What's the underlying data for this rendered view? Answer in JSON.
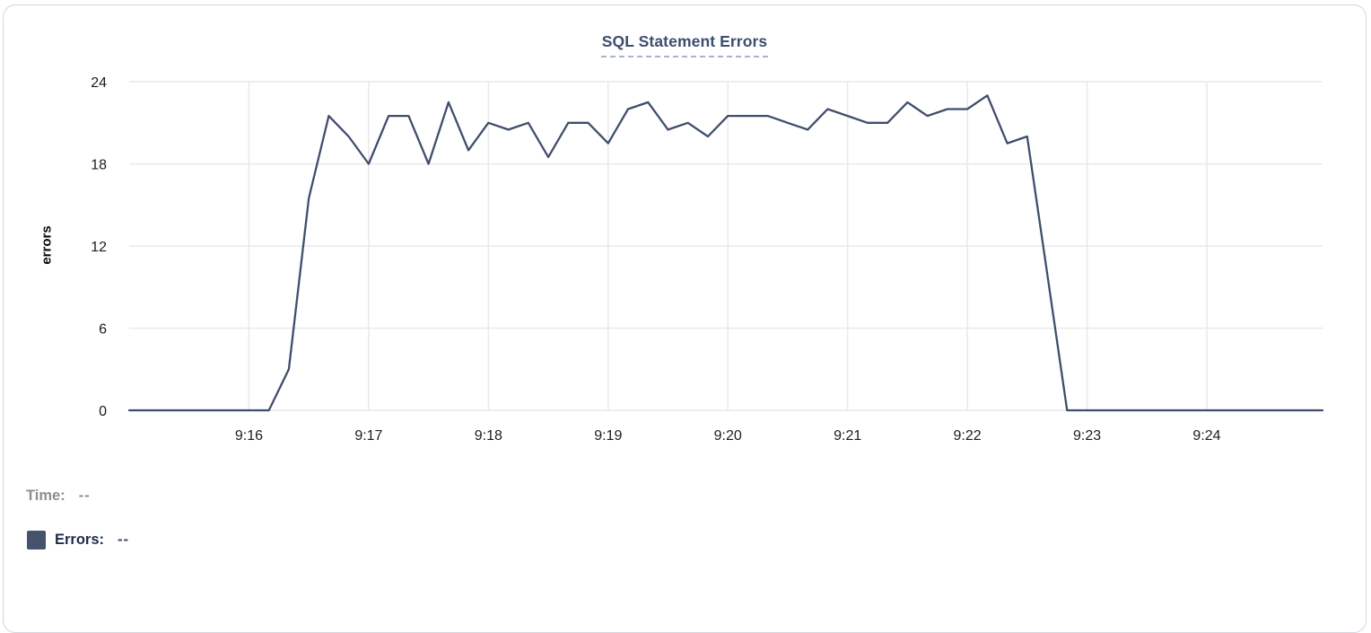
{
  "chart_data": {
    "type": "line",
    "title": "SQL Statement Errors",
    "ylabel": "errors",
    "xlabel": "",
    "ylim": [
      0,
      24
    ],
    "yticks": [
      0,
      6,
      12,
      18,
      24
    ],
    "xtick_labels": [
      "9:16",
      "9:17",
      "9:18",
      "9:19",
      "9:20",
      "9:21",
      "9:22",
      "9:23",
      "9:24"
    ],
    "xtick_seconds": [
      60,
      120,
      180,
      240,
      300,
      360,
      420,
      480,
      540
    ],
    "x_start_time": "9:15:00",
    "x_domain_seconds": [
      0,
      598
    ],
    "grid": true,
    "legend_position": "bottom-left",
    "series": [
      {
        "name": "Errors",
        "color": "#3f4e6c",
        "points": [
          [
            0,
            0
          ],
          [
            10,
            0
          ],
          [
            20,
            0
          ],
          [
            30,
            0
          ],
          [
            40,
            0
          ],
          [
            50,
            0
          ],
          [
            60,
            0
          ],
          [
            70,
            0
          ],
          [
            80,
            3
          ],
          [
            90,
            15.5
          ],
          [
            100,
            21.5
          ],
          [
            110,
            20
          ],
          [
            120,
            18
          ],
          [
            130,
            21.5
          ],
          [
            140,
            21.5
          ],
          [
            150,
            18
          ],
          [
            160,
            22.5
          ],
          [
            170,
            19
          ],
          [
            180,
            21
          ],
          [
            190,
            20.5
          ],
          [
            200,
            21
          ],
          [
            210,
            18.5
          ],
          [
            220,
            21
          ],
          [
            230,
            21
          ],
          [
            240,
            19.5
          ],
          [
            250,
            22
          ],
          [
            260,
            22.5
          ],
          [
            270,
            20.5
          ],
          [
            280,
            21
          ],
          [
            290,
            20
          ],
          [
            300,
            21.5
          ],
          [
            310,
            21.5
          ],
          [
            320,
            21.5
          ],
          [
            330,
            21
          ],
          [
            340,
            20.5
          ],
          [
            350,
            22
          ],
          [
            360,
            21.5
          ],
          [
            370,
            21
          ],
          [
            380,
            21
          ],
          [
            390,
            22.5
          ],
          [
            400,
            21.5
          ],
          [
            410,
            22
          ],
          [
            420,
            22
          ],
          [
            430,
            23
          ],
          [
            440,
            19.5
          ],
          [
            450,
            20
          ],
          [
            460,
            10
          ],
          [
            470,
            0
          ],
          [
            480,
            0
          ],
          [
            490,
            0
          ],
          [
            500,
            0
          ],
          [
            510,
            0
          ],
          [
            520,
            0
          ],
          [
            530,
            0
          ],
          [
            540,
            0
          ],
          [
            550,
            0
          ],
          [
            560,
            0
          ],
          [
            570,
            0
          ],
          [
            580,
            0
          ],
          [
            590,
            0
          ],
          [
            598,
            0
          ]
        ]
      }
    ]
  },
  "legend": {
    "time_label": "Time:",
    "time_value": "--",
    "errors_label": "Errors:",
    "errors_value": "--",
    "swatch_color": "#45536e"
  },
  "colors": {
    "title": "#3d4e6e",
    "title_underline": "#a9b4ca",
    "axis_text": "#1c1c1e",
    "gridline": "#e9e9eb",
    "line": "#3f4e6c",
    "legend_time_text": "#8e8e93",
    "legend_errors_text": "#1d2b4d",
    "card_border": "#d6d6db"
  }
}
